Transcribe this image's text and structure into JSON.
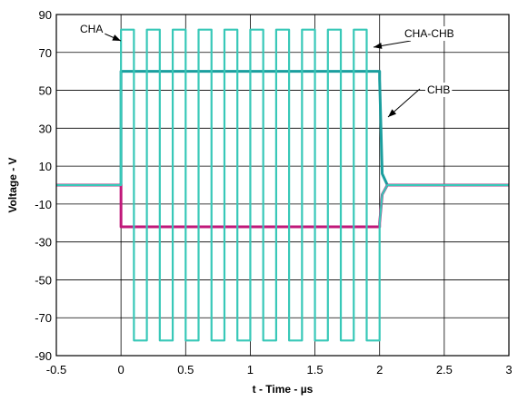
{
  "chart_data": {
    "type": "line",
    "title": "",
    "xlabel": "t - Time - µs",
    "ylabel": "Voltage - V",
    "xlim": [
      -0.5,
      3
    ],
    "ylim": [
      -90,
      90
    ],
    "xticks": [
      "-0.5",
      "0",
      "0.5",
      "1",
      "1.5",
      "2",
      "2.5",
      "3"
    ],
    "xtick_values": [
      -0.5,
      0,
      0.5,
      1,
      1.5,
      2,
      2.5,
      3
    ],
    "yticks": [
      "90",
      "70",
      "50",
      "30",
      "10",
      "-10",
      "-30",
      "-50",
      "-70",
      "-90"
    ],
    "ytick_values": [
      90,
      70,
      50,
      30,
      10,
      -10,
      -30,
      -50,
      -70,
      -90
    ],
    "grid": true,
    "legend": "none",
    "series": [
      {
        "name": "CHA",
        "color": "#1a9e9e",
        "x": [
          -0.5,
          0,
          0,
          2,
          2,
          2.02,
          2.06,
          3
        ],
        "y": [
          0,
          0,
          60,
          60,
          56,
          6,
          0,
          0
        ]
      },
      {
        "name": "CHB",
        "color": "#c0187a",
        "x": [
          -0.5,
          0,
          0,
          2,
          2,
          2.02,
          2.06,
          3
        ],
        "y": [
          0,
          0,
          -22,
          -22,
          -20,
          -5,
          0,
          0
        ]
      },
      {
        "name": "CHA-CHB",
        "color": "#38c8b8",
        "x": [
          -0.5,
          0,
          0,
          0.1,
          0.1,
          0.2,
          0.2,
          0.3,
          0.3,
          0.4,
          0.4,
          0.5,
          0.5,
          0.6,
          0.6,
          0.7,
          0.7,
          0.8,
          0.8,
          0.9,
          0.9,
          1.0,
          1.0,
          1.1,
          1.1,
          1.2,
          1.2,
          1.3,
          1.3,
          1.4,
          1.4,
          1.5,
          1.5,
          1.6,
          1.6,
          1.7,
          1.7,
          1.8,
          1.8,
          1.9,
          1.9,
          2.0,
          2.0,
          2.02,
          2.06,
          3
        ],
        "y": [
          0,
          0,
          82,
          82,
          -82,
          -82,
          82,
          82,
          -82,
          -82,
          82,
          82,
          -82,
          -82,
          82,
          82,
          -82,
          -82,
          82,
          82,
          -82,
          -82,
          82,
          82,
          -82,
          -82,
          82,
          82,
          -82,
          -82,
          82,
          82,
          -82,
          -82,
          82,
          82,
          -82,
          -82,
          82,
          82,
          -82,
          -82,
          -20,
          -5,
          0,
          0
        ]
      }
    ],
    "annotations": [
      {
        "text": "CHA",
        "target_x": 0.0,
        "target_y": 82
      },
      {
        "text": "CHA-CHB",
        "target_x": 1.96,
        "target_y": 82
      },
      {
        "text": "CHB",
        "target_x": 2.02,
        "target_y": 60
      }
    ]
  }
}
